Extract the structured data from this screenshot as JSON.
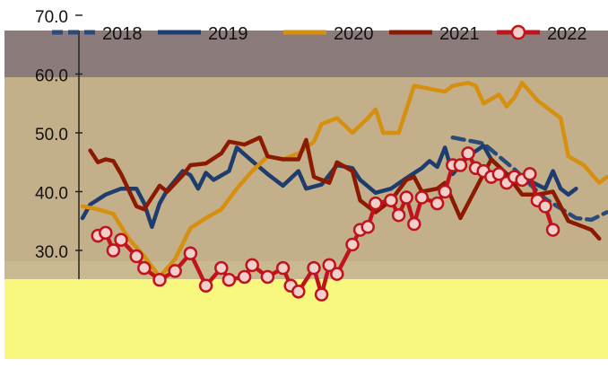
{
  "chart_data": {
    "type": "line",
    "title": "",
    "xlabel": "",
    "ylabel": "",
    "ylim": [
      25,
      70
    ],
    "yticks": [
      "30.0",
      "40.0",
      "50.0",
      "60.0",
      "70.0"
    ],
    "legend_position": "top",
    "colors": {
      "band_top": "#8c7b7b",
      "band_mid": "#c3b08a",
      "band_lower": "#c9b991",
      "band_bottom": "#f8f87e"
    },
    "series": [
      {
        "name": "2018",
        "color": "#2a4a7a",
        "dashed": true,
        "markers": false,
        "points": [
          [
            48,
            49.2
          ],
          [
            52,
            48.2
          ],
          [
            56,
            43.8
          ],
          [
            60,
            38.8
          ],
          [
            64,
            35.5
          ],
          [
            66,
            35.2
          ],
          [
            68,
            36.5
          ]
        ]
      },
      {
        "name": "2019",
        "color": "#1e3c6e",
        "dashed": false,
        "markers": false,
        "points": [
          [
            0,
            35.5
          ],
          [
            1,
            37.8
          ],
          [
            3,
            39.5
          ],
          [
            5,
            40.5
          ],
          [
            7,
            40.5
          ],
          [
            8,
            38.0
          ],
          [
            9,
            34.0
          ],
          [
            10,
            38.0
          ],
          [
            11,
            40.3
          ],
          [
            13,
            43.5
          ],
          [
            14,
            42.8
          ],
          [
            15,
            40.5
          ],
          [
            16,
            43.2
          ],
          [
            17,
            42.0
          ],
          [
            19,
            43.5
          ],
          [
            20,
            47.5
          ],
          [
            22,
            45.2
          ],
          [
            24,
            43.0
          ],
          [
            26,
            41.0
          ],
          [
            28,
            43.5
          ],
          [
            29,
            40.5
          ],
          [
            31,
            41.2
          ],
          [
            33,
            44.5
          ],
          [
            35,
            44.0
          ],
          [
            36,
            42.0
          ],
          [
            38,
            39.8
          ],
          [
            40,
            40.5
          ],
          [
            42,
            42.3
          ],
          [
            44,
            44.0
          ],
          [
            45,
            45.2
          ],
          [
            46,
            44.2
          ],
          [
            47,
            47.5
          ],
          [
            48,
            43.0
          ],
          [
            50,
            46.0
          ],
          [
            52,
            47.8
          ],
          [
            53,
            45.5
          ],
          [
            55,
            43.0
          ],
          [
            57,
            42.5
          ],
          [
            58,
            41.8
          ],
          [
            60,
            40.5
          ],
          [
            61,
            43.5
          ],
          [
            62,
            40.5
          ],
          [
            63,
            39.5
          ],
          [
            64,
            40.5
          ]
        ]
      },
      {
        "name": "2020",
        "color": "#d68f0e",
        "dashed": false,
        "markers": false,
        "points": [
          [
            0,
            37.5
          ],
          [
            2,
            37.0
          ],
          [
            4,
            36.2
          ],
          [
            6,
            32.0
          ],
          [
            8,
            29.0
          ],
          [
            10,
            25.5
          ],
          [
            12,
            28.5
          ],
          [
            14,
            33.8
          ],
          [
            16,
            35.5
          ],
          [
            18,
            37.0
          ],
          [
            20,
            40.5
          ],
          [
            22,
            43.5
          ],
          [
            24,
            46.0
          ],
          [
            26,
            45.5
          ],
          [
            28,
            46.5
          ],
          [
            30,
            48.5
          ],
          [
            31,
            51.5
          ],
          [
            33,
            52.5
          ],
          [
            35,
            50.0
          ],
          [
            37,
            52.5
          ],
          [
            38,
            54.0
          ],
          [
            39,
            50.0
          ],
          [
            41,
            50.0
          ],
          [
            43,
            58.0
          ],
          [
            45,
            57.5
          ],
          [
            47,
            57.0
          ],
          [
            48,
            58.0
          ],
          [
            50,
            58.5
          ],
          [
            51,
            58.0
          ],
          [
            52,
            55.0
          ],
          [
            54,
            56.5
          ],
          [
            55,
            54.5
          ],
          [
            56,
            56.0
          ],
          [
            57,
            58.5
          ],
          [
            59,
            55.5
          ],
          [
            61,
            53.5
          ],
          [
            62,
            52.5
          ],
          [
            63,
            46.0
          ],
          [
            65,
            44.5
          ],
          [
            66,
            43.0
          ],
          [
            67,
            41.5
          ],
          [
            68,
            42.5
          ]
        ]
      },
      {
        "name": "2021",
        "color": "#8b1a00",
        "dashed": false,
        "markers": false,
        "points": [
          [
            1,
            47.0
          ],
          [
            2,
            45.0
          ],
          [
            3,
            45.5
          ],
          [
            4,
            45.2
          ],
          [
            5,
            43.0
          ],
          [
            7,
            37.5
          ],
          [
            8,
            37.0
          ],
          [
            10,
            41.0
          ],
          [
            11,
            40.0
          ],
          [
            13,
            42.8
          ],
          [
            14,
            44.5
          ],
          [
            16,
            44.8
          ],
          [
            18,
            46.5
          ],
          [
            19,
            48.5
          ],
          [
            21,
            48.0
          ],
          [
            23,
            49.2
          ],
          [
            24,
            46.0
          ],
          [
            26,
            45.5
          ],
          [
            28,
            45.5
          ],
          [
            29,
            48.8
          ],
          [
            30,
            42.5
          ],
          [
            32,
            41.5
          ],
          [
            33,
            45.0
          ],
          [
            35,
            43.5
          ],
          [
            36,
            38.5
          ],
          [
            38,
            36.5
          ],
          [
            40,
            38.5
          ],
          [
            42,
            42.0
          ],
          [
            43,
            42.5
          ],
          [
            44,
            40.0
          ],
          [
            46,
            40.5
          ],
          [
            47,
            41.5
          ],
          [
            49,
            35.5
          ],
          [
            51,
            40.5
          ],
          [
            53,
            45.5
          ],
          [
            55,
            43.0
          ],
          [
            57,
            39.5
          ],
          [
            59,
            39.5
          ],
          [
            61,
            40.0
          ],
          [
            63,
            35.0
          ],
          [
            65,
            34.0
          ],
          [
            66,
            33.5
          ],
          [
            67,
            32.0
          ]
        ]
      },
      {
        "name": "2022",
        "color": "#c0141c",
        "dashed": false,
        "markers": true,
        "points": [
          [
            2,
            32.5
          ],
          [
            3,
            33.0
          ],
          [
            4,
            30.0
          ],
          [
            5,
            31.8
          ],
          [
            7,
            29.0
          ],
          [
            8,
            27.0
          ],
          [
            10,
            25.0
          ],
          [
            12,
            26.5
          ],
          [
            14,
            29.5
          ],
          [
            16,
            24.0
          ],
          [
            18,
            27.0
          ],
          [
            19,
            25.0
          ],
          [
            21,
            25.5
          ],
          [
            22,
            27.5
          ],
          [
            24,
            25.5
          ],
          [
            26,
            27.0
          ],
          [
            27,
            24.0
          ],
          [
            28,
            23.0
          ],
          [
            30,
            27.0
          ],
          [
            31,
            22.5
          ],
          [
            32,
            27.5
          ],
          [
            33,
            26.0
          ],
          [
            35,
            31.0
          ],
          [
            36,
            33.5
          ],
          [
            37,
            34.0
          ],
          [
            38,
            38.0
          ],
          [
            40,
            38.5
          ],
          [
            41,
            36.0
          ],
          [
            42,
            39.0
          ],
          [
            43,
            34.5
          ],
          [
            44,
            39.0
          ],
          [
            46,
            38.0
          ],
          [
            47,
            40.0
          ],
          [
            48,
            44.5
          ],
          [
            49,
            44.5
          ],
          [
            50,
            46.5
          ],
          [
            51,
            44.0
          ],
          [
            52,
            43.5
          ],
          [
            53,
            42.5
          ],
          [
            54,
            43.0
          ],
          [
            55,
            41.5
          ],
          [
            56,
            42.5
          ],
          [
            57,
            42.0
          ],
          [
            58,
            43.0
          ],
          [
            59,
            38.5
          ],
          [
            60,
            37.5
          ],
          [
            61,
            33.5
          ]
        ]
      }
    ]
  }
}
